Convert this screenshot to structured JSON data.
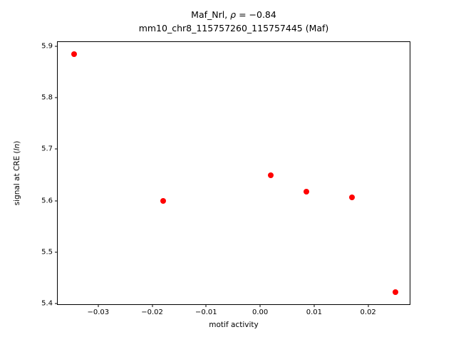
{
  "figure": {
    "title_line1_pre": "Maf_Nrl, ",
    "title_line1_rho": "ρ",
    "title_line1_post": " = −0.84",
    "title_line2": "mm10_chr8_115757260_115757445 (Maf)",
    "xlabel": "motif activity",
    "ylabel_pre": "signal at CRE (",
    "ylabel_italic": "ln",
    "ylabel_post": ")"
  },
  "chart_data": {
    "type": "scatter",
    "title": "Maf_Nrl, ρ = −0.84\nmm10_chr8_115757260_115757445 (Maf)",
    "xlabel": "motif activity",
    "ylabel": "signal at CRE (ln)",
    "legend": "none",
    "grid": false,
    "marker": "circle",
    "marker_color": "#ff0000",
    "marker_size_px": 8,
    "xlim": [
      -0.0375,
      0.0277
    ],
    "ylim": [
      5.399,
      5.908
    ],
    "xticks": {
      "values": [
        -0.03,
        -0.02,
        -0.01,
        0.0,
        0.01,
        0.02
      ],
      "labels": [
        "−0.03",
        "−0.02",
        "−0.01",
        "0.00",
        "0.01",
        "0.02"
      ]
    },
    "yticks": {
      "values": [
        5.4,
        5.5,
        5.6,
        5.7,
        5.8,
        5.9
      ],
      "labels": [
        "5.4",
        "5.5",
        "5.6",
        "5.7",
        "5.8",
        "5.9"
      ]
    },
    "points": [
      {
        "x": -0.0345,
        "y": 5.885
      },
      {
        "x": -0.018,
        "y": 5.6
      },
      {
        "x": 0.002,
        "y": 5.65
      },
      {
        "x": 0.0085,
        "y": 5.617
      },
      {
        "x": 0.017,
        "y": 5.607
      },
      {
        "x": 0.025,
        "y": 5.422
      }
    ]
  }
}
